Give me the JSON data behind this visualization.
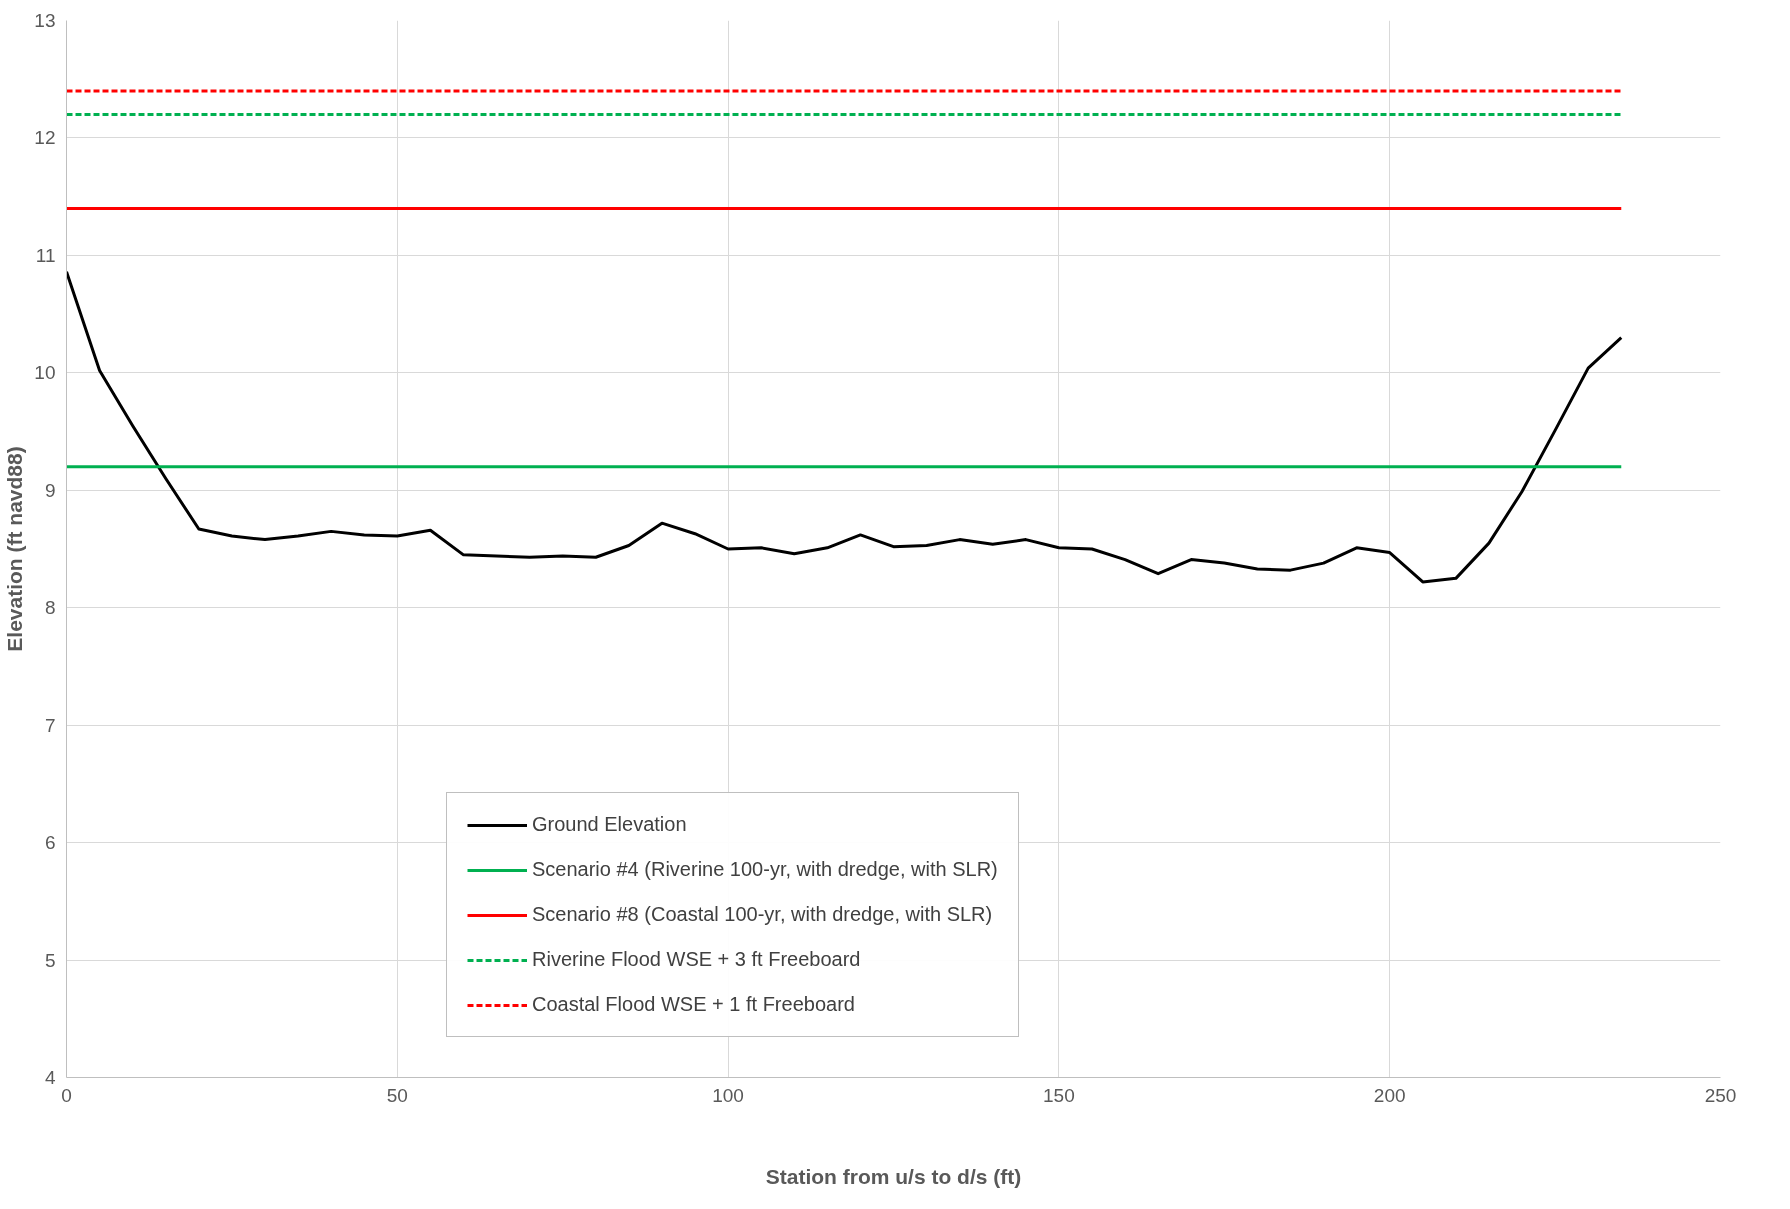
{
  "chart_data": {
    "type": "line",
    "xlabel": "Station from u/s to d/s (ft)",
    "ylabel": "Elevation (ft navd88)",
    "x": [
      0,
      5,
      10,
      15,
      20,
      25,
      30,
      35,
      40,
      45,
      50,
      55,
      60,
      65,
      70,
      75,
      80,
      85,
      90,
      95,
      100,
      105,
      110,
      115,
      120,
      125,
      130,
      135,
      140,
      145,
      150,
      155,
      160,
      165,
      170,
      175,
      180,
      185,
      190,
      195,
      200,
      205,
      210,
      215,
      220,
      225,
      230,
      235
    ],
    "series": [
      {
        "name": "Ground Elevation",
        "color": "#000000",
        "line_style": "solid",
        "values": [
          10.86,
          10.02,
          9.55,
          9.1,
          8.67,
          8.61,
          8.58,
          8.61,
          8.65,
          8.62,
          8.61,
          8.66,
          8.45,
          8.44,
          8.43,
          8.44,
          8.43,
          8.53,
          8.72,
          8.63,
          8.5,
          8.51,
          8.46,
          8.51,
          8.62,
          8.52,
          8.53,
          8.58,
          8.54,
          8.58,
          8.51,
          8.5,
          8.41,
          8.29,
          8.41,
          8.38,
          8.33,
          8.32,
          8.38,
          8.51,
          8.47,
          8.22,
          8.25,
          8.55,
          8.99,
          9.51,
          10.04,
          10.3
        ]
      },
      {
        "name": "Scenario #4 (Riverine 100-yr, with dredge, with SLR)",
        "color": "#00b050",
        "line_style": "solid",
        "values": [
          9.2,
          9.2,
          9.2,
          9.2,
          9.2,
          9.2,
          9.2,
          9.2,
          9.2,
          9.2,
          9.2,
          9.2,
          9.2,
          9.2,
          9.2,
          9.2,
          9.2,
          9.2,
          9.2,
          9.2,
          9.2,
          9.2,
          9.2,
          9.2,
          9.2,
          9.2,
          9.2,
          9.2,
          9.2,
          9.2,
          9.2,
          9.2,
          9.2,
          9.2,
          9.2,
          9.2,
          9.2,
          9.2,
          9.2,
          9.2,
          9.2,
          9.2,
          9.2,
          9.2,
          9.2,
          9.2,
          9.2,
          9.2
        ]
      },
      {
        "name": "Scenario #8 (Coastal 100-yr, with dredge, with SLR)",
        "color": "#ff0000",
        "line_style": "solid",
        "values": [
          11.4,
          11.4,
          11.4,
          11.4,
          11.4,
          11.4,
          11.4,
          11.4,
          11.4,
          11.4,
          11.4,
          11.4,
          11.4,
          11.4,
          11.4,
          11.4,
          11.4,
          11.4,
          11.4,
          11.4,
          11.4,
          11.4,
          11.4,
          11.4,
          11.4,
          11.4,
          11.4,
          11.4,
          11.4,
          11.4,
          11.4,
          11.4,
          11.4,
          11.4,
          11.4,
          11.4,
          11.4,
          11.4,
          11.4,
          11.4,
          11.4,
          11.4,
          11.4,
          11.4,
          11.4,
          11.4,
          11.4,
          11.4
        ]
      },
      {
        "name": "Riverine Flood WSE + 3 ft Freeboard",
        "color": "#00b050",
        "line_style": "dashed",
        "values": [
          12.2,
          12.2,
          12.2,
          12.2,
          12.2,
          12.2,
          12.2,
          12.2,
          12.2,
          12.2,
          12.2,
          12.2,
          12.2,
          12.2,
          12.2,
          12.2,
          12.2,
          12.2,
          12.2,
          12.2,
          12.2,
          12.2,
          12.2,
          12.2,
          12.2,
          12.2,
          12.2,
          12.2,
          12.2,
          12.2,
          12.2,
          12.2,
          12.2,
          12.2,
          12.2,
          12.2,
          12.2,
          12.2,
          12.2,
          12.2,
          12.2,
          12.2,
          12.2,
          12.2,
          12.2,
          12.2,
          12.2,
          12.2
        ]
      },
      {
        "name": "Coastal Flood WSE + 1 ft Freeboard",
        "color": "#ff0000",
        "line_style": "dashed",
        "values": [
          12.4,
          12.4,
          12.4,
          12.4,
          12.4,
          12.4,
          12.4,
          12.4,
          12.4,
          12.4,
          12.4,
          12.4,
          12.4,
          12.4,
          12.4,
          12.4,
          12.4,
          12.4,
          12.4,
          12.4,
          12.4,
          12.4,
          12.4,
          12.4,
          12.4,
          12.4,
          12.4,
          12.4,
          12.4,
          12.4,
          12.4,
          12.4,
          12.4,
          12.4,
          12.4,
          12.4,
          12.4,
          12.4,
          12.4,
          12.4,
          12.4,
          12.4,
          12.4,
          12.4,
          12.4,
          12.4,
          12.4,
          12.4
        ]
      }
    ],
    "xlim": [
      0,
      250
    ],
    "xticks": [
      0,
      50,
      100,
      150,
      200,
      250
    ],
    "ylim": [
      4,
      13
    ],
    "yticks": [
      4,
      5,
      6,
      7,
      8,
      9,
      10,
      11,
      12,
      13
    ],
    "grid": true,
    "legend": "bottom",
    "marker": "none"
  }
}
